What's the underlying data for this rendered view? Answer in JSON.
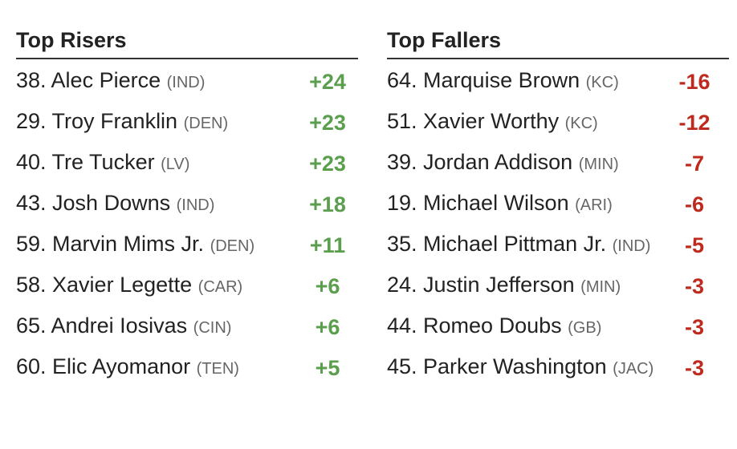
{
  "risers": {
    "title": "Top Risers",
    "rows": [
      {
        "name": "38. Alec Pierce",
        "team": "(IND)",
        "change": "+24"
      },
      {
        "name": "29. Troy Franklin",
        "team": "(DEN)",
        "change": "+23"
      },
      {
        "name": "40. Tre Tucker",
        "team": "(LV)",
        "change": "+23"
      },
      {
        "name": "43. Josh Downs",
        "team": "(IND)",
        "change": "+18"
      },
      {
        "name": "59. Marvin Mims Jr.",
        "team": "(DEN)",
        "change": "+11"
      },
      {
        "name": "58. Xavier Legette",
        "team": "(CAR)",
        "change": "+6"
      },
      {
        "name": "65. Andrei Iosivas",
        "team": "(CIN)",
        "change": "+6"
      },
      {
        "name": "60. Elic Ayomanor",
        "team": "(TEN)",
        "change": "+5"
      }
    ]
  },
  "fallers": {
    "title": "Top Fallers",
    "rows": [
      {
        "name": "64. Marquise Brown",
        "team": "(KC)",
        "change": "-16"
      },
      {
        "name": "51. Xavier Worthy",
        "team": "(KC)",
        "change": "-12"
      },
      {
        "name": "39. Jordan Addison",
        "team": "(MIN)",
        "change": "-7"
      },
      {
        "name": "19. Michael Wilson",
        "team": "(ARI)",
        "change": "-6"
      },
      {
        "name": "35. Michael Pittman Jr.",
        "team": "(IND)",
        "change": "-5"
      },
      {
        "name": "24. Justin Jefferson",
        "team": "(MIN)",
        "change": "-3"
      },
      {
        "name": "44. Romeo Doubs",
        "team": "(GB)",
        "change": "-3"
      },
      {
        "name": "45. Parker Washington",
        "team": "(JAC)",
        "change": "-3"
      }
    ]
  }
}
